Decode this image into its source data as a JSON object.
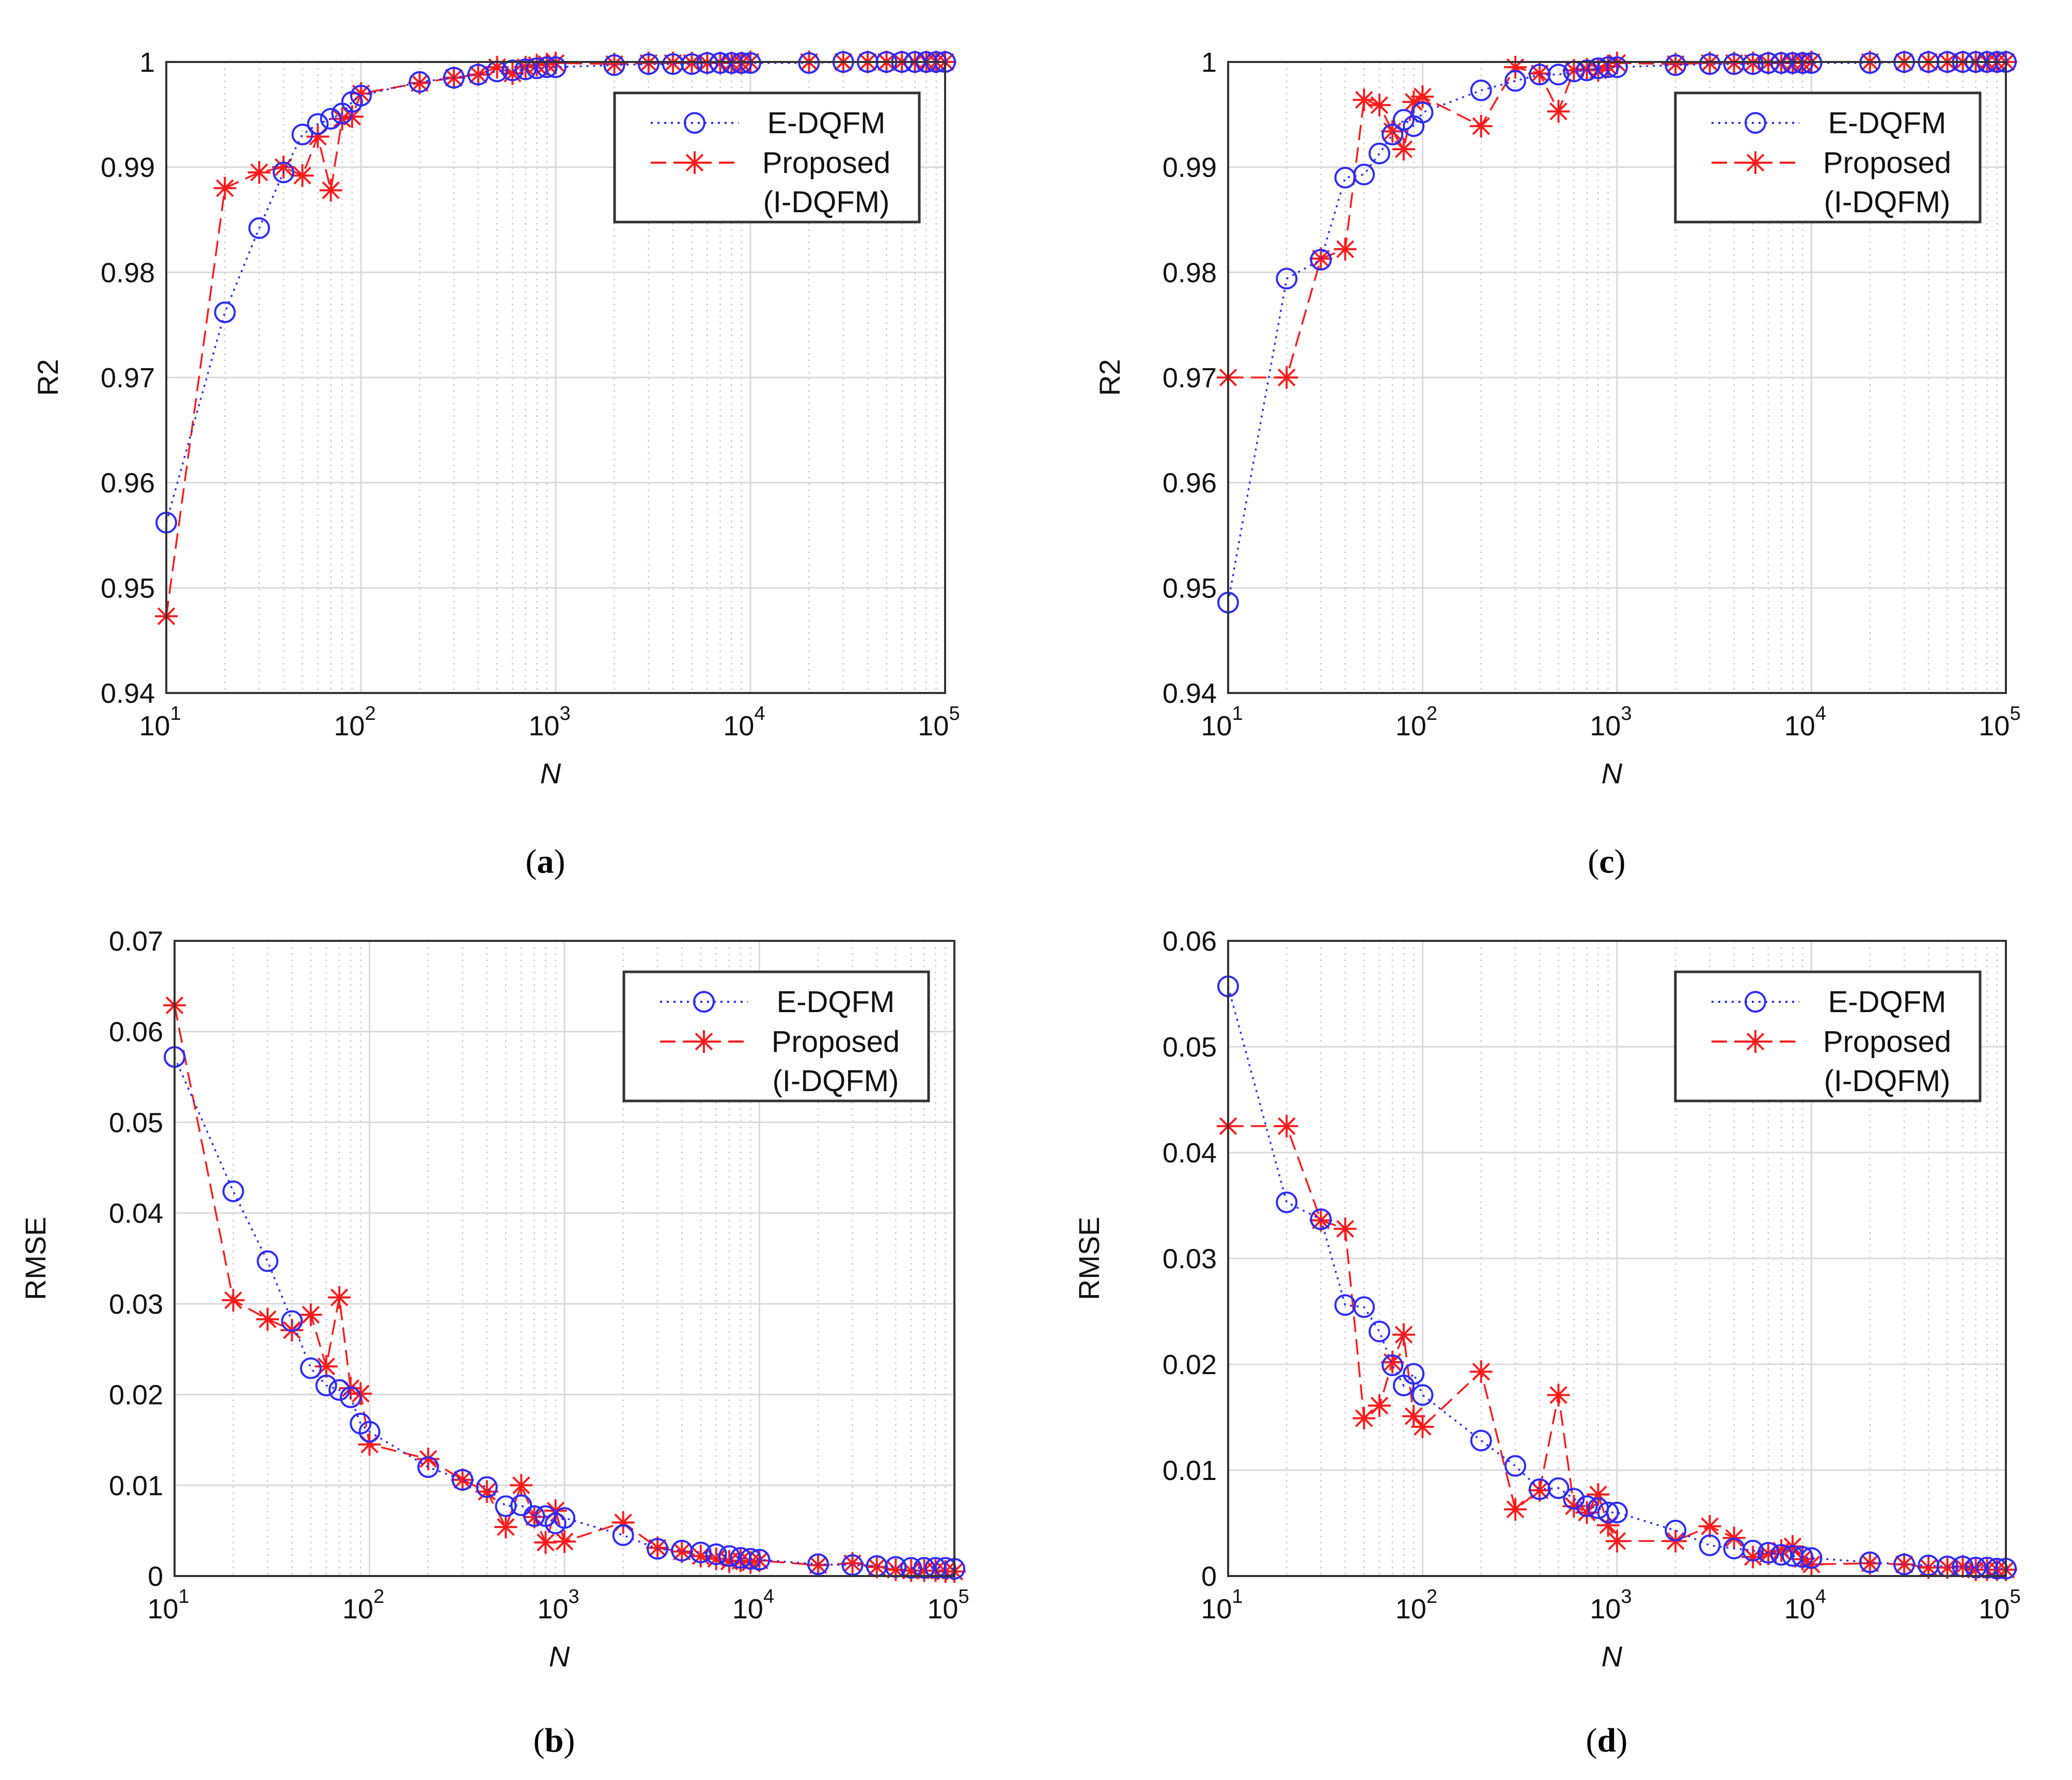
{
  "colors": {
    "edqfm": "#2b2bff",
    "proposed": "#ff1a1a",
    "grid": "#d9d9d9",
    "axis": "#333333"
  },
  "legend": {
    "series1": "E-DQFM",
    "series2_line1": "Proposed",
    "series2_line2": "(I-DQFM)"
  },
  "x_tick_exps": [
    "1",
    "2",
    "3",
    "4",
    "5"
  ],
  "x_tick_base": "10",
  "chart_data": [
    {
      "id": "a",
      "type": "line",
      "caption": "a",
      "xlabel": "N",
      "ylabel": "R2",
      "xscale": "log",
      "xlim": [
        10,
        100000
      ],
      "ylim": [
        0.94,
        1.0
      ],
      "yticks": [
        "0.94",
        "0.95",
        "0.96",
        "0.97",
        "0.98",
        "0.99",
        "1"
      ],
      "legend_position": "top-right",
      "series": [
        {
          "name": "E-DQFM",
          "marker": "circle",
          "linestyle": "dotted",
          "x": [
            10,
            20,
            30,
            40,
            50,
            60,
            70,
            80,
            90,
            100,
            200,
            300,
            400,
            500,
            600,
            700,
            800,
            900,
            1000,
            2000,
            3000,
            4000,
            5000,
            6000,
            7000,
            8000,
            9000,
            10000,
            20000,
            30000,
            40000,
            50000,
            60000,
            70000,
            80000,
            90000,
            100000
          ],
          "y": [
            0.9562,
            0.9762,
            0.9842,
            0.9895,
            0.9931,
            0.9941,
            0.9946,
            0.9951,
            0.9962,
            0.9968,
            0.9981,
            0.9985,
            0.9988,
            0.9991,
            0.9992,
            0.9993,
            0.9994,
            0.9995,
            0.9995,
            0.9997,
            0.9998,
            0.9998,
            0.9998,
            0.9999,
            0.9999,
            0.9999,
            0.9999,
            0.9999,
            0.9999,
            1.0,
            1.0,
            1.0,
            1.0,
            1.0,
            1.0,
            1.0,
            1.0
          ]
        },
        {
          "name": "Proposed (I-DQFM)",
          "marker": "asterisk",
          "linestyle": "dashed",
          "x": [
            10,
            20,
            30,
            40,
            50,
            60,
            70,
            80,
            90,
            100,
            200,
            300,
            400,
            500,
            600,
            700,
            800,
            900,
            1000,
            2000,
            3000,
            4000,
            5000,
            6000,
            7000,
            8000,
            9000,
            10000,
            20000,
            30000,
            40000,
            50000,
            60000,
            70000,
            80000,
            90000,
            100000
          ],
          "y": [
            0.9473,
            0.988,
            0.9895,
            0.99,
            0.9892,
            0.9929,
            0.9878,
            0.9946,
            0.9948,
            0.997,
            0.998,
            0.9985,
            0.9988,
            0.9995,
            0.9989,
            0.9995,
            0.9997,
            0.9998,
            0.9999,
            0.9998,
            0.9999,
            0.9999,
            0.9999,
            0.9999,
            0.9999,
            0.9999,
            0.9999,
            1.0,
            1.0,
            1.0,
            1.0,
            1.0,
            1.0,
            1.0,
            1.0,
            1.0,
            1.0
          ]
        }
      ]
    },
    {
      "id": "b",
      "type": "line",
      "caption": "b",
      "xlabel": "N",
      "ylabel": "RMSE",
      "xscale": "log",
      "xlim": [
        10,
        100000
      ],
      "ylim": [
        0,
        0.07
      ],
      "yticks": [
        "0",
        "0.01",
        "0.02",
        "0.03",
        "0.04",
        "0.05",
        "0.06",
        "0.07"
      ],
      "legend_position": "top-right",
      "series": [
        {
          "name": "E-DQFM",
          "marker": "circle",
          "linestyle": "dotted",
          "x": [
            10,
            20,
            30,
            40,
            50,
            60,
            70,
            80,
            90,
            100,
            200,
            300,
            400,
            500,
            600,
            700,
            800,
            900,
            1000,
            2000,
            3000,
            4000,
            5000,
            6000,
            7000,
            8000,
            9000,
            10000,
            20000,
            30000,
            40000,
            50000,
            60000,
            70000,
            80000,
            90000,
            100000
          ],
          "y": [
            0.0572,
            0.0424,
            0.0347,
            0.0281,
            0.0229,
            0.021,
            0.0205,
            0.0197,
            0.0168,
            0.0159,
            0.012,
            0.0106,
            0.0098,
            0.0077,
            0.0078,
            0.0066,
            0.0066,
            0.0058,
            0.0064,
            0.0045,
            0.003,
            0.0028,
            0.0026,
            0.0024,
            0.0022,
            0.002,
            0.0019,
            0.0018,
            0.0013,
            0.0012,
            0.0011,
            0.001,
            0.0009,
            0.0009,
            0.0009,
            0.0009,
            0.0008
          ]
        },
        {
          "name": "Proposed (I-DQFM)",
          "marker": "asterisk",
          "linestyle": "dashed",
          "x": [
            10,
            20,
            30,
            40,
            50,
            60,
            70,
            80,
            90,
            100,
            200,
            300,
            400,
            500,
            600,
            700,
            800,
            900,
            1000,
            2000,
            3000,
            4000,
            5000,
            6000,
            7000,
            8000,
            9000,
            10000,
            20000,
            30000,
            40000,
            50000,
            60000,
            70000,
            80000,
            90000,
            100000
          ],
          "y": [
            0.0629,
            0.0304,
            0.0283,
            0.0271,
            0.0288,
            0.0231,
            0.0307,
            0.0207,
            0.0201,
            0.0145,
            0.0129,
            0.0106,
            0.0093,
            0.0054,
            0.01,
            0.0065,
            0.0037,
            0.0072,
            0.0038,
            0.0059,
            0.0031,
            0.0027,
            0.0022,
            0.0019,
            0.0016,
            0.0017,
            0.0015,
            0.0017,
            0.0012,
            0.0014,
            0.001,
            0.0007,
            0.0006,
            0.0006,
            0.0006,
            0.0005,
            0.0005
          ]
        }
      ]
    },
    {
      "id": "c",
      "type": "line",
      "caption": "c",
      "xlabel": "N",
      "ylabel": "R2",
      "xscale": "log",
      "xlim": [
        10,
        100000
      ],
      "ylim": [
        0.94,
        1.0
      ],
      "yticks": [
        "0.94",
        "0.95",
        "0.96",
        "0.97",
        "0.98",
        "0.99",
        "1"
      ],
      "legend_position": "top-right",
      "series": [
        {
          "name": "E-DQFM",
          "marker": "circle",
          "linestyle": "dotted",
          "x": [
            10,
            20,
            30,
            40,
            50,
            60,
            70,
            80,
            90,
            100,
            200,
            300,
            400,
            500,
            600,
            700,
            800,
            900,
            1000,
            2000,
            3000,
            4000,
            5000,
            6000,
            7000,
            8000,
            9000,
            10000,
            20000,
            30000,
            40000,
            50000,
            60000,
            70000,
            80000,
            90000,
            100000
          ],
          "y": [
            0.9486,
            0.9794,
            0.9812,
            0.989,
            0.9893,
            0.9913,
            0.9931,
            0.9945,
            0.9939,
            0.9952,
            0.9973,
            0.9982,
            0.9988,
            0.9988,
            0.9991,
            0.9992,
            0.9994,
            0.9995,
            0.9995,
            0.9997,
            0.9998,
            0.9998,
            0.9998,
            0.9999,
            0.9999,
            0.9999,
            0.9999,
            0.9999,
            0.9999,
            1.0,
            1.0,
            1.0,
            1.0,
            1.0,
            1.0,
            1.0,
            1.0
          ]
        },
        {
          "name": "Proposed (I-DQFM)",
          "marker": "asterisk",
          "linestyle": "dashed",
          "x": [
            10,
            20,
            30,
            40,
            50,
            60,
            70,
            80,
            90,
            100,
            200,
            300,
            400,
            500,
            600,
            700,
            800,
            900,
            1000,
            2000,
            3000,
            4000,
            5000,
            6000,
            7000,
            8000,
            9000,
            10000,
            20000,
            30000,
            40000,
            50000,
            60000,
            70000,
            80000,
            90000,
            100000
          ],
          "y": [
            0.97,
            0.97,
            0.9813,
            0.9822,
            0.9964,
            0.9959,
            0.9934,
            0.9917,
            0.9962,
            0.9967,
            0.9939,
            0.9995,
            0.9989,
            0.9953,
            0.9992,
            0.9993,
            0.9992,
            0.9996,
            0.9999,
            0.9998,
            0.9999,
            0.9999,
            0.9999,
            0.9999,
            0.9999,
            0.9999,
            0.9999,
            1.0,
            1.0,
            1.0,
            1.0,
            1.0,
            1.0,
            1.0,
            1.0,
            1.0,
            1.0
          ]
        }
      ]
    },
    {
      "id": "d",
      "type": "line",
      "caption": "d",
      "xlabel": "N",
      "ylabel": "RMSE",
      "xscale": "log",
      "xlim": [
        10,
        100000
      ],
      "ylim": [
        0,
        0.06
      ],
      "yticks": [
        "0",
        "0.01",
        "0.02",
        "0.03",
        "0.04",
        "0.05",
        "0.06"
      ],
      "legend_position": "top-right",
      "series": [
        {
          "name": "E-DQFM",
          "marker": "circle",
          "linestyle": "dotted",
          "x": [
            10,
            20,
            30,
            40,
            50,
            60,
            70,
            80,
            90,
            100,
            200,
            300,
            400,
            500,
            600,
            700,
            800,
            900,
            1000,
            2000,
            3000,
            4000,
            5000,
            6000,
            7000,
            8000,
            9000,
            10000,
            20000,
            30000,
            40000,
            50000,
            60000,
            70000,
            80000,
            90000,
            100000
          ],
          "y": [
            0.0557,
            0.0353,
            0.0337,
            0.0256,
            0.0254,
            0.0231,
            0.0199,
            0.018,
            0.0191,
            0.0171,
            0.0128,
            0.0104,
            0.0082,
            0.0083,
            0.0073,
            0.0066,
            0.0064,
            0.006,
            0.006,
            0.0043,
            0.0029,
            0.0026,
            0.0024,
            0.0022,
            0.002,
            0.0019,
            0.0018,
            0.0017,
            0.0013,
            0.0011,
            0.001,
            0.0009,
            0.0009,
            0.0008,
            0.0008,
            0.0007,
            0.0007
          ]
        },
        {
          "name": "Proposed (I-DQFM)",
          "marker": "asterisk",
          "linestyle": "dashed",
          "x": [
            10,
            20,
            30,
            40,
            50,
            60,
            70,
            80,
            90,
            100,
            200,
            300,
            400,
            500,
            600,
            700,
            800,
            900,
            1000,
            2000,
            3000,
            4000,
            5000,
            6000,
            7000,
            8000,
            9000,
            10000,
            20000,
            30000,
            40000,
            50000,
            60000,
            70000,
            80000,
            90000,
            100000
          ],
          "y": [
            0.0425,
            0.0425,
            0.0336,
            0.0328,
            0.0149,
            0.0161,
            0.0202,
            0.0228,
            0.0151,
            0.0141,
            0.0193,
            0.0063,
            0.0081,
            0.0171,
            0.0066,
            0.006,
            0.0077,
            0.0048,
            0.0033,
            0.0033,
            0.0047,
            0.0036,
            0.0018,
            0.0021,
            0.0024,
            0.0028,
            0.0016,
            0.0011,
            0.0012,
            0.0011,
            0.0008,
            0.0008,
            0.0009,
            0.0006,
            0.0006,
            0.0006,
            0.0006
          ]
        }
      ]
    }
  ]
}
